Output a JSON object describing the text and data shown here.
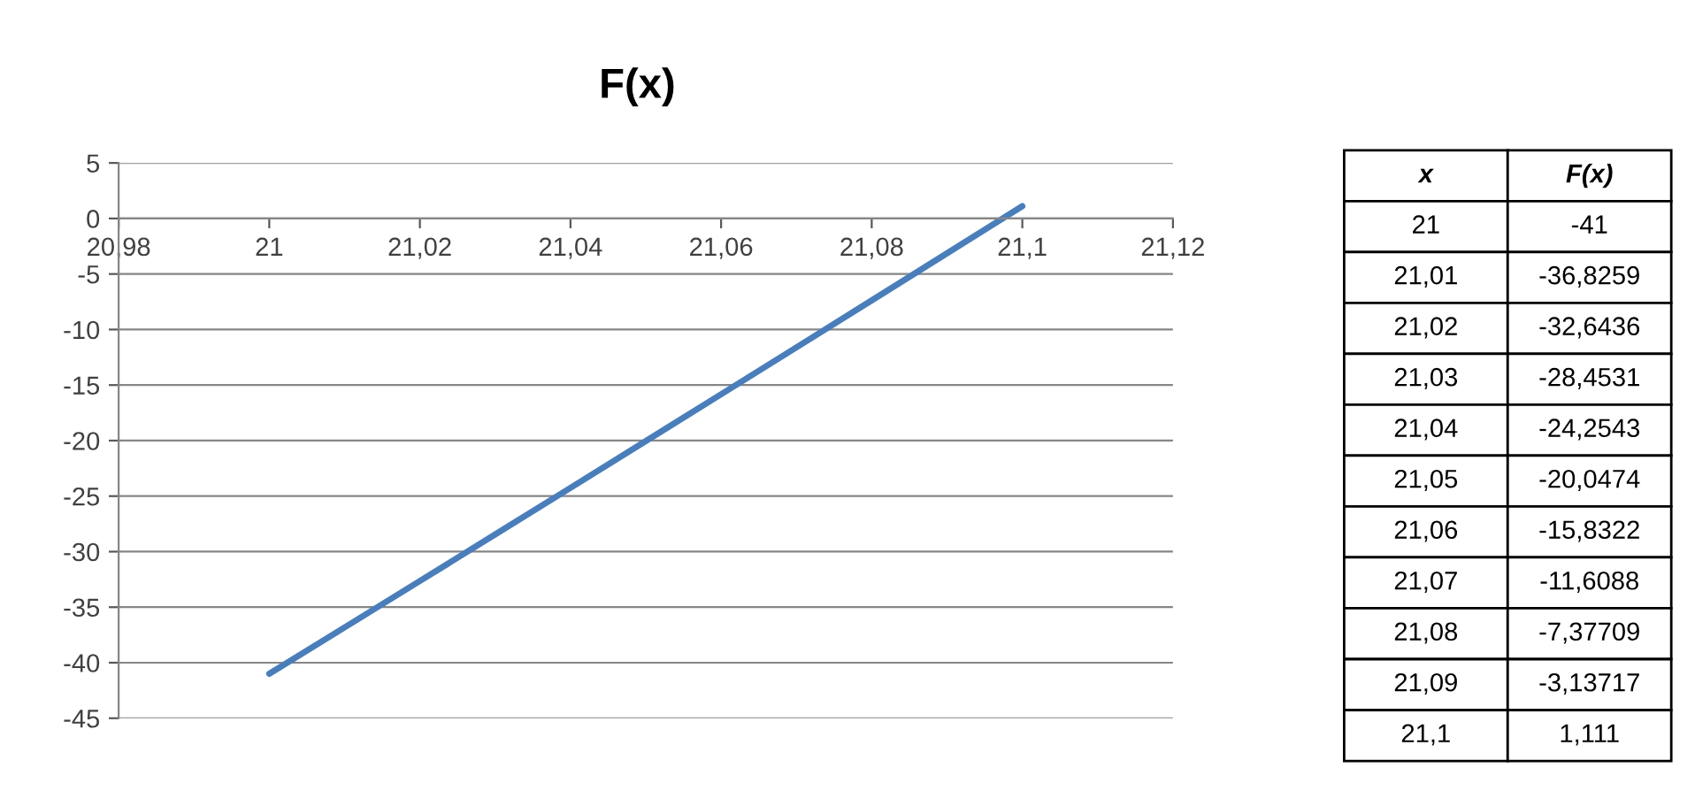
{
  "chart_data": {
    "type": "line",
    "title": "F(x)",
    "annotations": [
      "x",
      "F(x)",
      "21",
      "-41",
      "21,01",
      "-36,8259",
      "21,02",
      "-32,6436",
      "21,03",
      "-28,4531",
      "21,04",
      "-24,2543",
      "21,05",
      "-20,0474",
      "21,06",
      "-15,8322",
      "21,07",
      "-11,6088",
      "21,08",
      "-7,37709",
      "21,09",
      "-3,13717",
      "21,1",
      "1,111"
    ],
    "x": [
      21,
      21.01,
      21.02,
      21.03,
      21.04,
      21.05,
      21.06,
      21.07,
      21.08,
      21.09,
      21.1
    ],
    "series": [
      {
        "color": "#4a7ebb",
        "values": [
          -41,
          -36.8259,
          -32.6436,
          -28.4531,
          -24.2543,
          -20.0474,
          -15.8322,
          -11.6088,
          -7.37709,
          -3.13717,
          1.111
        ]
      }
    ],
    "xlim": [
      20.98,
      21.12
    ],
    "xticks": [
      {
        "value": 20.98,
        "label": "20,98"
      },
      21,
      {
        "value": 21.02,
        "label": "21,02"
      },
      {
        "value": 21.04,
        "label": "21,04"
      },
      {
        "value": 21.06,
        "label": "21,06"
      },
      {
        "value": 21.08,
        "label": "21,08"
      },
      {
        "value": 21.1,
        "label": "21,1"
      },
      {
        "value": 21.12,
        "label": "21,12"
      }
    ],
    "ylim": [
      -45,
      5
    ],
    "yticks": [
      5,
      0,
      -5,
      -10,
      -15,
      -20,
      -25,
      -30,
      -35,
      -40,
      -45
    ],
    "grid": "y",
    "legend": false,
    "marker": "none",
    "line_style": "solid"
  }
}
